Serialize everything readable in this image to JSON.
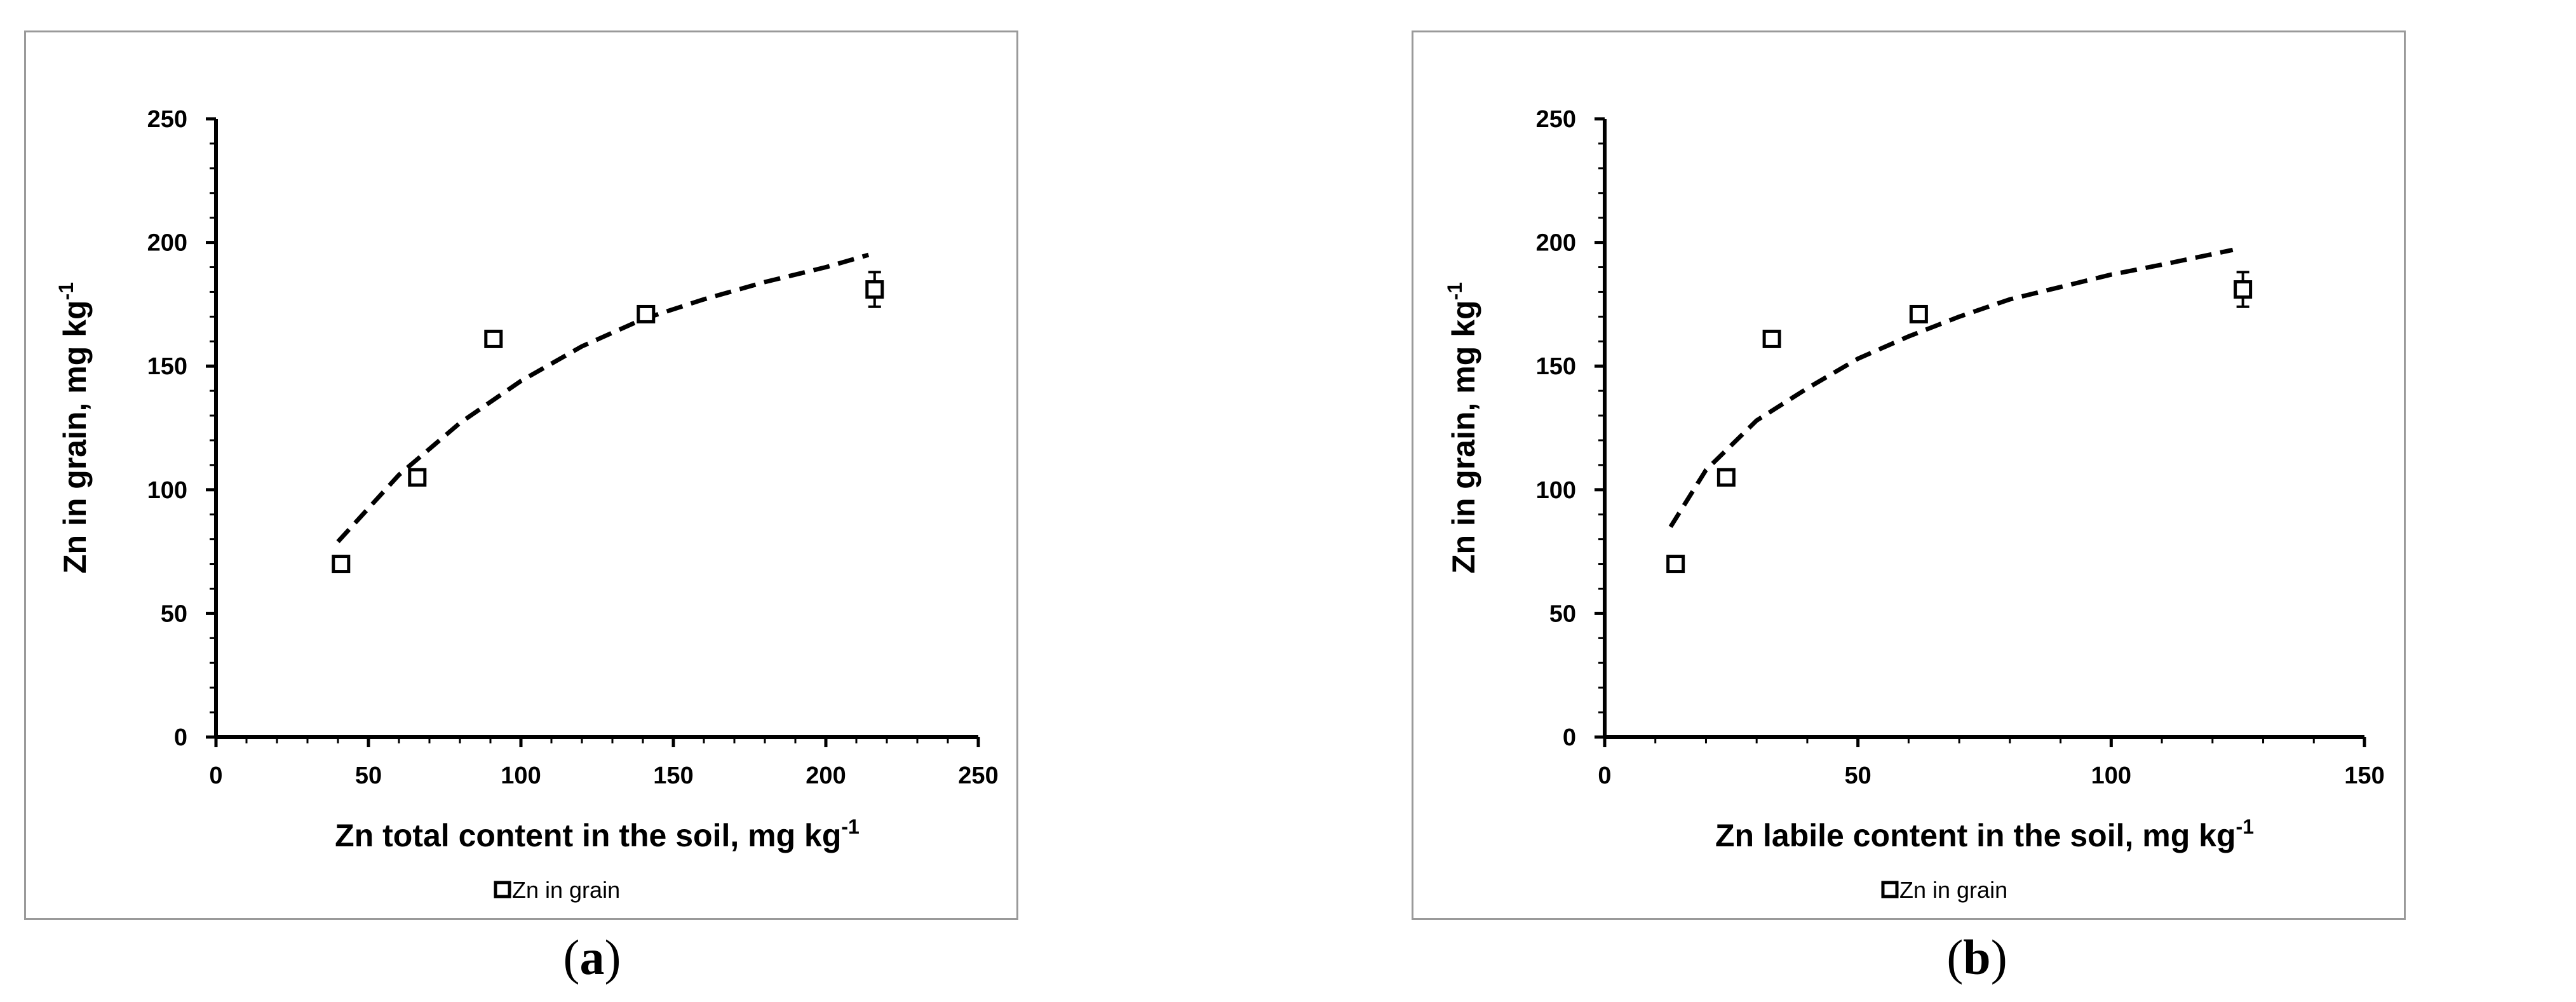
{
  "chart_data": [
    {
      "type": "scatter",
      "panel_label": "a",
      "xlabel": "Zn total content  in the soil, mg kg",
      "xlabel_sup": "-1",
      "ylabel": "Zn in grain, mg kg",
      "ylabel_sup": "-1",
      "xlim": [
        0,
        250
      ],
      "ylim": [
        0,
        250
      ],
      "xticks": [
        "0",
        "50",
        "100",
        "150",
        "200",
        "250"
      ],
      "yticks": [
        "0",
        "50",
        "100",
        "150",
        "200",
        "250"
      ],
      "grid": false,
      "legend_position": "bottom-center",
      "series": [
        {
          "name": "Zn in grain",
          "marker": "open-square",
          "x": [
            41,
            66,
            91,
            141,
            216
          ],
          "y": [
            70,
            105,
            161,
            171,
            181
          ],
          "error": [
            0,
            0,
            0,
            0,
            7
          ]
        }
      ],
      "trendline": {
        "style": "dashed",
        "x": [
          40,
          60,
          80,
          100,
          120,
          140,
          160,
          180,
          200,
          214
        ],
        "y": [
          79,
          106,
          127,
          144,
          158,
          169,
          177,
          184,
          190,
          195
        ]
      }
    },
    {
      "type": "scatter",
      "panel_label": "b",
      "xlabel": "Zn labile content  in the soil, mg kg",
      "xlabel_sup": "-1",
      "ylabel": "Zn in grain, mg kg",
      "ylabel_sup": "-1",
      "xlim": [
        0,
        150
      ],
      "ylim": [
        0,
        250
      ],
      "xticks": [
        "0",
        "50",
        "100",
        "150"
      ],
      "yticks": [
        "0",
        "50",
        "100",
        "150",
        "200",
        "250"
      ],
      "grid": false,
      "legend_position": "bottom-center",
      "series": [
        {
          "name": "Zn in grain",
          "marker": "open-square",
          "x": [
            14,
            24,
            33,
            62,
            126
          ],
          "y": [
            70,
            105,
            161,
            171,
            181
          ],
          "error": [
            0,
            0,
            0,
            0,
            7
          ]
        }
      ],
      "trendline": {
        "style": "dashed",
        "x": [
          13,
          20,
          30,
          40,
          50,
          60,
          70,
          80,
          90,
          100,
          110,
          124
        ],
        "y": [
          85,
          108,
          128,
          141,
          153,
          162,
          170,
          177,
          182,
          187,
          191,
          197
        ]
      }
    }
  ]
}
